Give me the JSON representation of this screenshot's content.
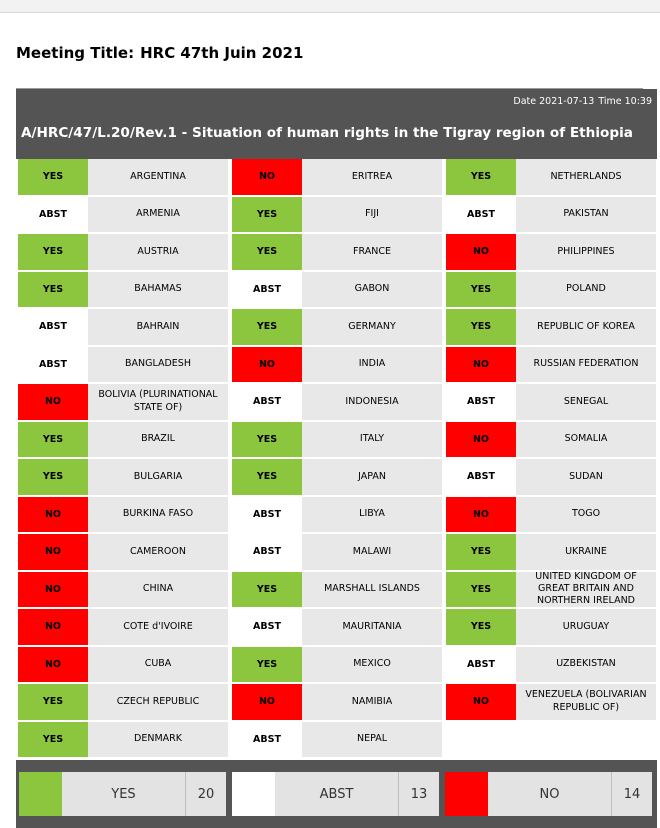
{
  "meeting": {
    "label": "Meeting Title:",
    "value": "HRC 47th Juin 2021"
  },
  "header": {
    "date": "Date 2021-07-13",
    "time": "Time 10:39",
    "resolution_title": "A/HRC/47/L.20/Rev.1 - Situation of human rights in the Tigray region of Ethiopia"
  },
  "colors": {
    "YES": "#8cc63f",
    "NO": "#ff0000",
    "ABST": "#ffffff",
    "header_bg": "#545454",
    "country_bg": "#e8e8e8"
  },
  "columns": [
    [
      {
        "vote": "YES",
        "country": "ARGENTINA"
      },
      {
        "vote": "ABST",
        "country": "ARMENIA"
      },
      {
        "vote": "YES",
        "country": "AUSTRIA"
      },
      {
        "vote": "YES",
        "country": "BAHAMAS"
      },
      {
        "vote": "ABST",
        "country": "BAHRAIN"
      },
      {
        "vote": "ABST",
        "country": "BANGLADESH"
      },
      {
        "vote": "NO",
        "country": "BOLIVIA (PLURINATIONAL STATE OF)"
      },
      {
        "vote": "YES",
        "country": "BRAZIL"
      },
      {
        "vote": "YES",
        "country": "BULGARIA"
      },
      {
        "vote": "NO",
        "country": "BURKINA FASO"
      },
      {
        "vote": "NO",
        "country": "CAMEROON"
      },
      {
        "vote": "NO",
        "country": "CHINA"
      },
      {
        "vote": "NO",
        "country": "COTE d'IVOIRE"
      },
      {
        "vote": "NO",
        "country": "CUBA"
      },
      {
        "vote": "YES",
        "country": "CZECH REPUBLIC"
      },
      {
        "vote": "YES",
        "country": "DENMARK"
      }
    ],
    [
      {
        "vote": "NO",
        "country": "ERITREA"
      },
      {
        "vote": "YES",
        "country": "FIJI"
      },
      {
        "vote": "YES",
        "country": "FRANCE"
      },
      {
        "vote": "ABST",
        "country": "GABON"
      },
      {
        "vote": "YES",
        "country": "GERMANY"
      },
      {
        "vote": "NO",
        "country": "INDIA"
      },
      {
        "vote": "ABST",
        "country": "INDONESIA"
      },
      {
        "vote": "YES",
        "country": "ITALY"
      },
      {
        "vote": "YES",
        "country": "JAPAN"
      },
      {
        "vote": "ABST",
        "country": "LIBYA"
      },
      {
        "vote": "ABST",
        "country": "MALAWI"
      },
      {
        "vote": "YES",
        "country": "MARSHALL ISLANDS"
      },
      {
        "vote": "ABST",
        "country": "MAURITANIA"
      },
      {
        "vote": "YES",
        "country": "MEXICO"
      },
      {
        "vote": "NO",
        "country": "NAMIBIA"
      },
      {
        "vote": "ABST",
        "country": "NEPAL"
      }
    ],
    [
      {
        "vote": "YES",
        "country": "NETHERLANDS"
      },
      {
        "vote": "ABST",
        "country": "PAKISTAN"
      },
      {
        "vote": "NO",
        "country": "PHILIPPINES"
      },
      {
        "vote": "YES",
        "country": "POLAND"
      },
      {
        "vote": "YES",
        "country": "REPUBLIC OF KOREA"
      },
      {
        "vote": "NO",
        "country": "RUSSIAN FEDERATION"
      },
      {
        "vote": "ABST",
        "country": "SENEGAL"
      },
      {
        "vote": "NO",
        "country": "SOMALIA"
      },
      {
        "vote": "ABST",
        "country": "SUDAN"
      },
      {
        "vote": "NO",
        "country": "TOGO"
      },
      {
        "vote": "YES",
        "country": "UKRAINE"
      },
      {
        "vote": "YES",
        "country": "UNITED KINGDOM OF GREAT BRITAIN AND NORTHERN IRELAND"
      },
      {
        "vote": "YES",
        "country": "URUGUAY"
      },
      {
        "vote": "ABST",
        "country": "UZBEKISTAN"
      },
      {
        "vote": "NO",
        "country": "VENEZUELA (BOLIVARIAN REPUBLIC OF)"
      }
    ]
  ],
  "totals": [
    {
      "vote": "YES",
      "label": "YES",
      "count": "20"
    },
    {
      "vote": "ABST",
      "label": "ABST",
      "count": "13"
    },
    {
      "vote": "NO",
      "label": "NO",
      "count": "14"
    }
  ]
}
